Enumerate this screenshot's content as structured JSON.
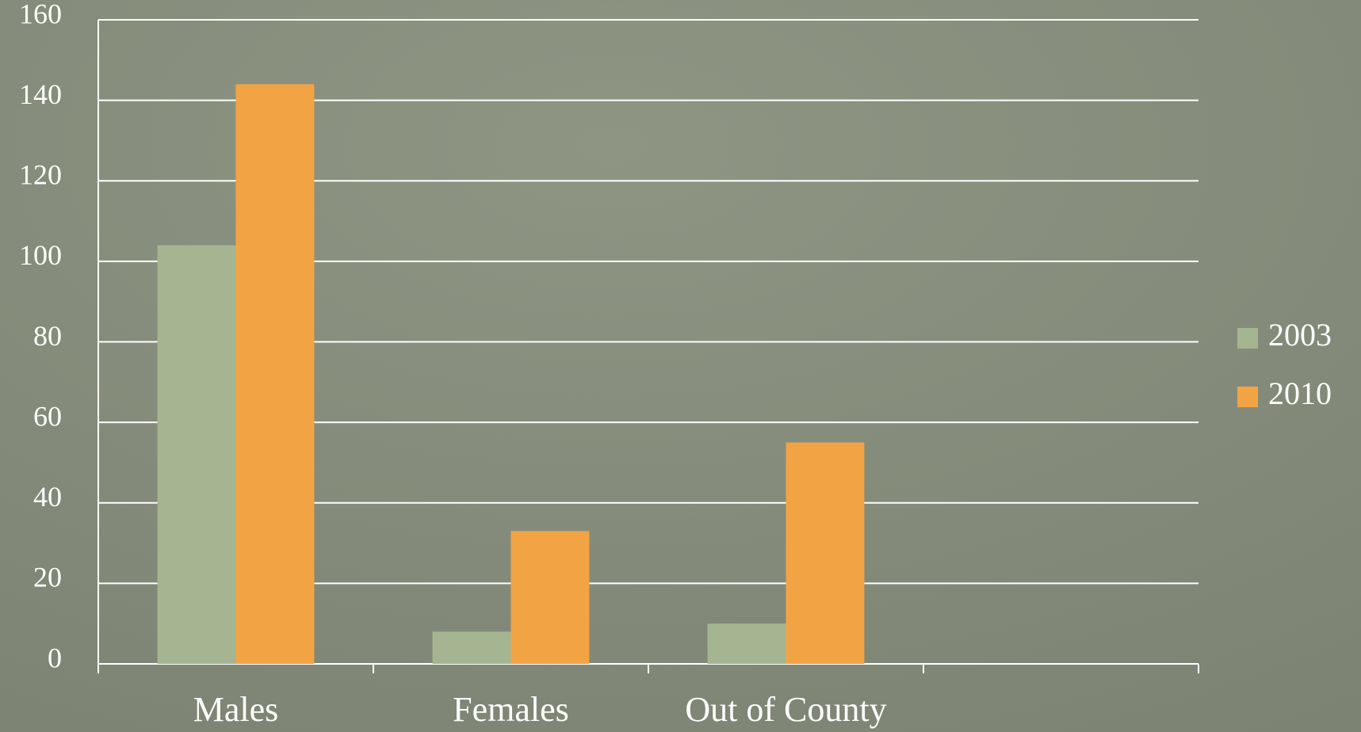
{
  "chart_data": {
    "type": "bar",
    "categories": [
      "Males",
      "Females",
      "Out of County",
      null
    ],
    "series": [
      {
        "name": "2003",
        "color": "#a5b592",
        "values": [
          104,
          8,
          10,
          null
        ]
      },
      {
        "name": "2010",
        "color": "#f2a444",
        "values": [
          144,
          33,
          55,
          null
        ]
      }
    ],
    "ylim": [
      0,
      160
    ],
    "yticks": [
      0,
      20,
      40,
      60,
      80,
      100,
      120,
      140,
      160
    ],
    "grid": true,
    "legend": "right"
  }
}
